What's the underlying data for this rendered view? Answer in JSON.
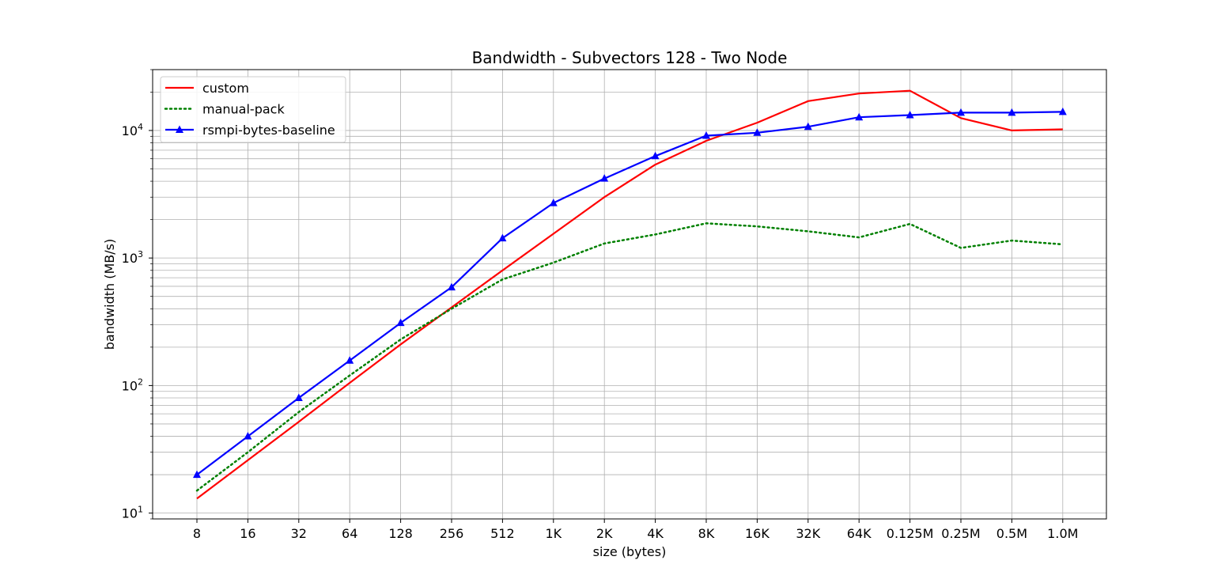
{
  "chart_data": {
    "type": "line",
    "title": "Bandwidth - Subvectors 128 - Two Node",
    "xlabel": "size (bytes)",
    "ylabel": "bandwidth (MB/s)",
    "yscale": "log",
    "ylim": [
      9,
      30000
    ],
    "grid": true,
    "legend_position": "upper-left",
    "categories": [
      "8",
      "16",
      "32",
      "64",
      "128",
      "256",
      "512",
      "1K",
      "2K",
      "4K",
      "8K",
      "16K",
      "32K",
      "64K",
      "0.125M",
      "0.25M",
      "0.5M",
      "1.0M"
    ],
    "y_ticks": [
      {
        "value": 10,
        "base": "10",
        "exp": "1"
      },
      {
        "value": 100,
        "base": "10",
        "exp": "2"
      },
      {
        "value": 1000,
        "base": "10",
        "exp": "3"
      },
      {
        "value": 10000,
        "base": "10",
        "exp": "4"
      }
    ],
    "series": [
      {
        "name": "custom",
        "color": "#ff0000",
        "style": "solid",
        "marker": "none",
        "values": [
          13,
          26,
          52,
          105,
          210,
          410,
          800,
          1550,
          3000,
          5400,
          8300,
          11500,
          17000,
          19500,
          20500,
          12500,
          10000,
          10200
        ]
      },
      {
        "name": "manual-pack",
        "color": "#008000",
        "style": "dotted",
        "marker": "none",
        "values": [
          15,
          30,
          62,
          120,
          230,
          400,
          680,
          920,
          1300,
          1530,
          1870,
          1770,
          1620,
          1450,
          1850,
          1200,
          1370,
          1280
        ]
      },
      {
        "name": "rsmpi-bytes-baseline",
        "color": "#0000ff",
        "style": "solid",
        "marker": "triangle",
        "values": [
          20,
          40,
          80,
          157,
          310,
          590,
          1430,
          2700,
          4200,
          6300,
          9100,
          9600,
          10700,
          12700,
          13200,
          13800,
          13800,
          14000
        ]
      }
    ]
  }
}
